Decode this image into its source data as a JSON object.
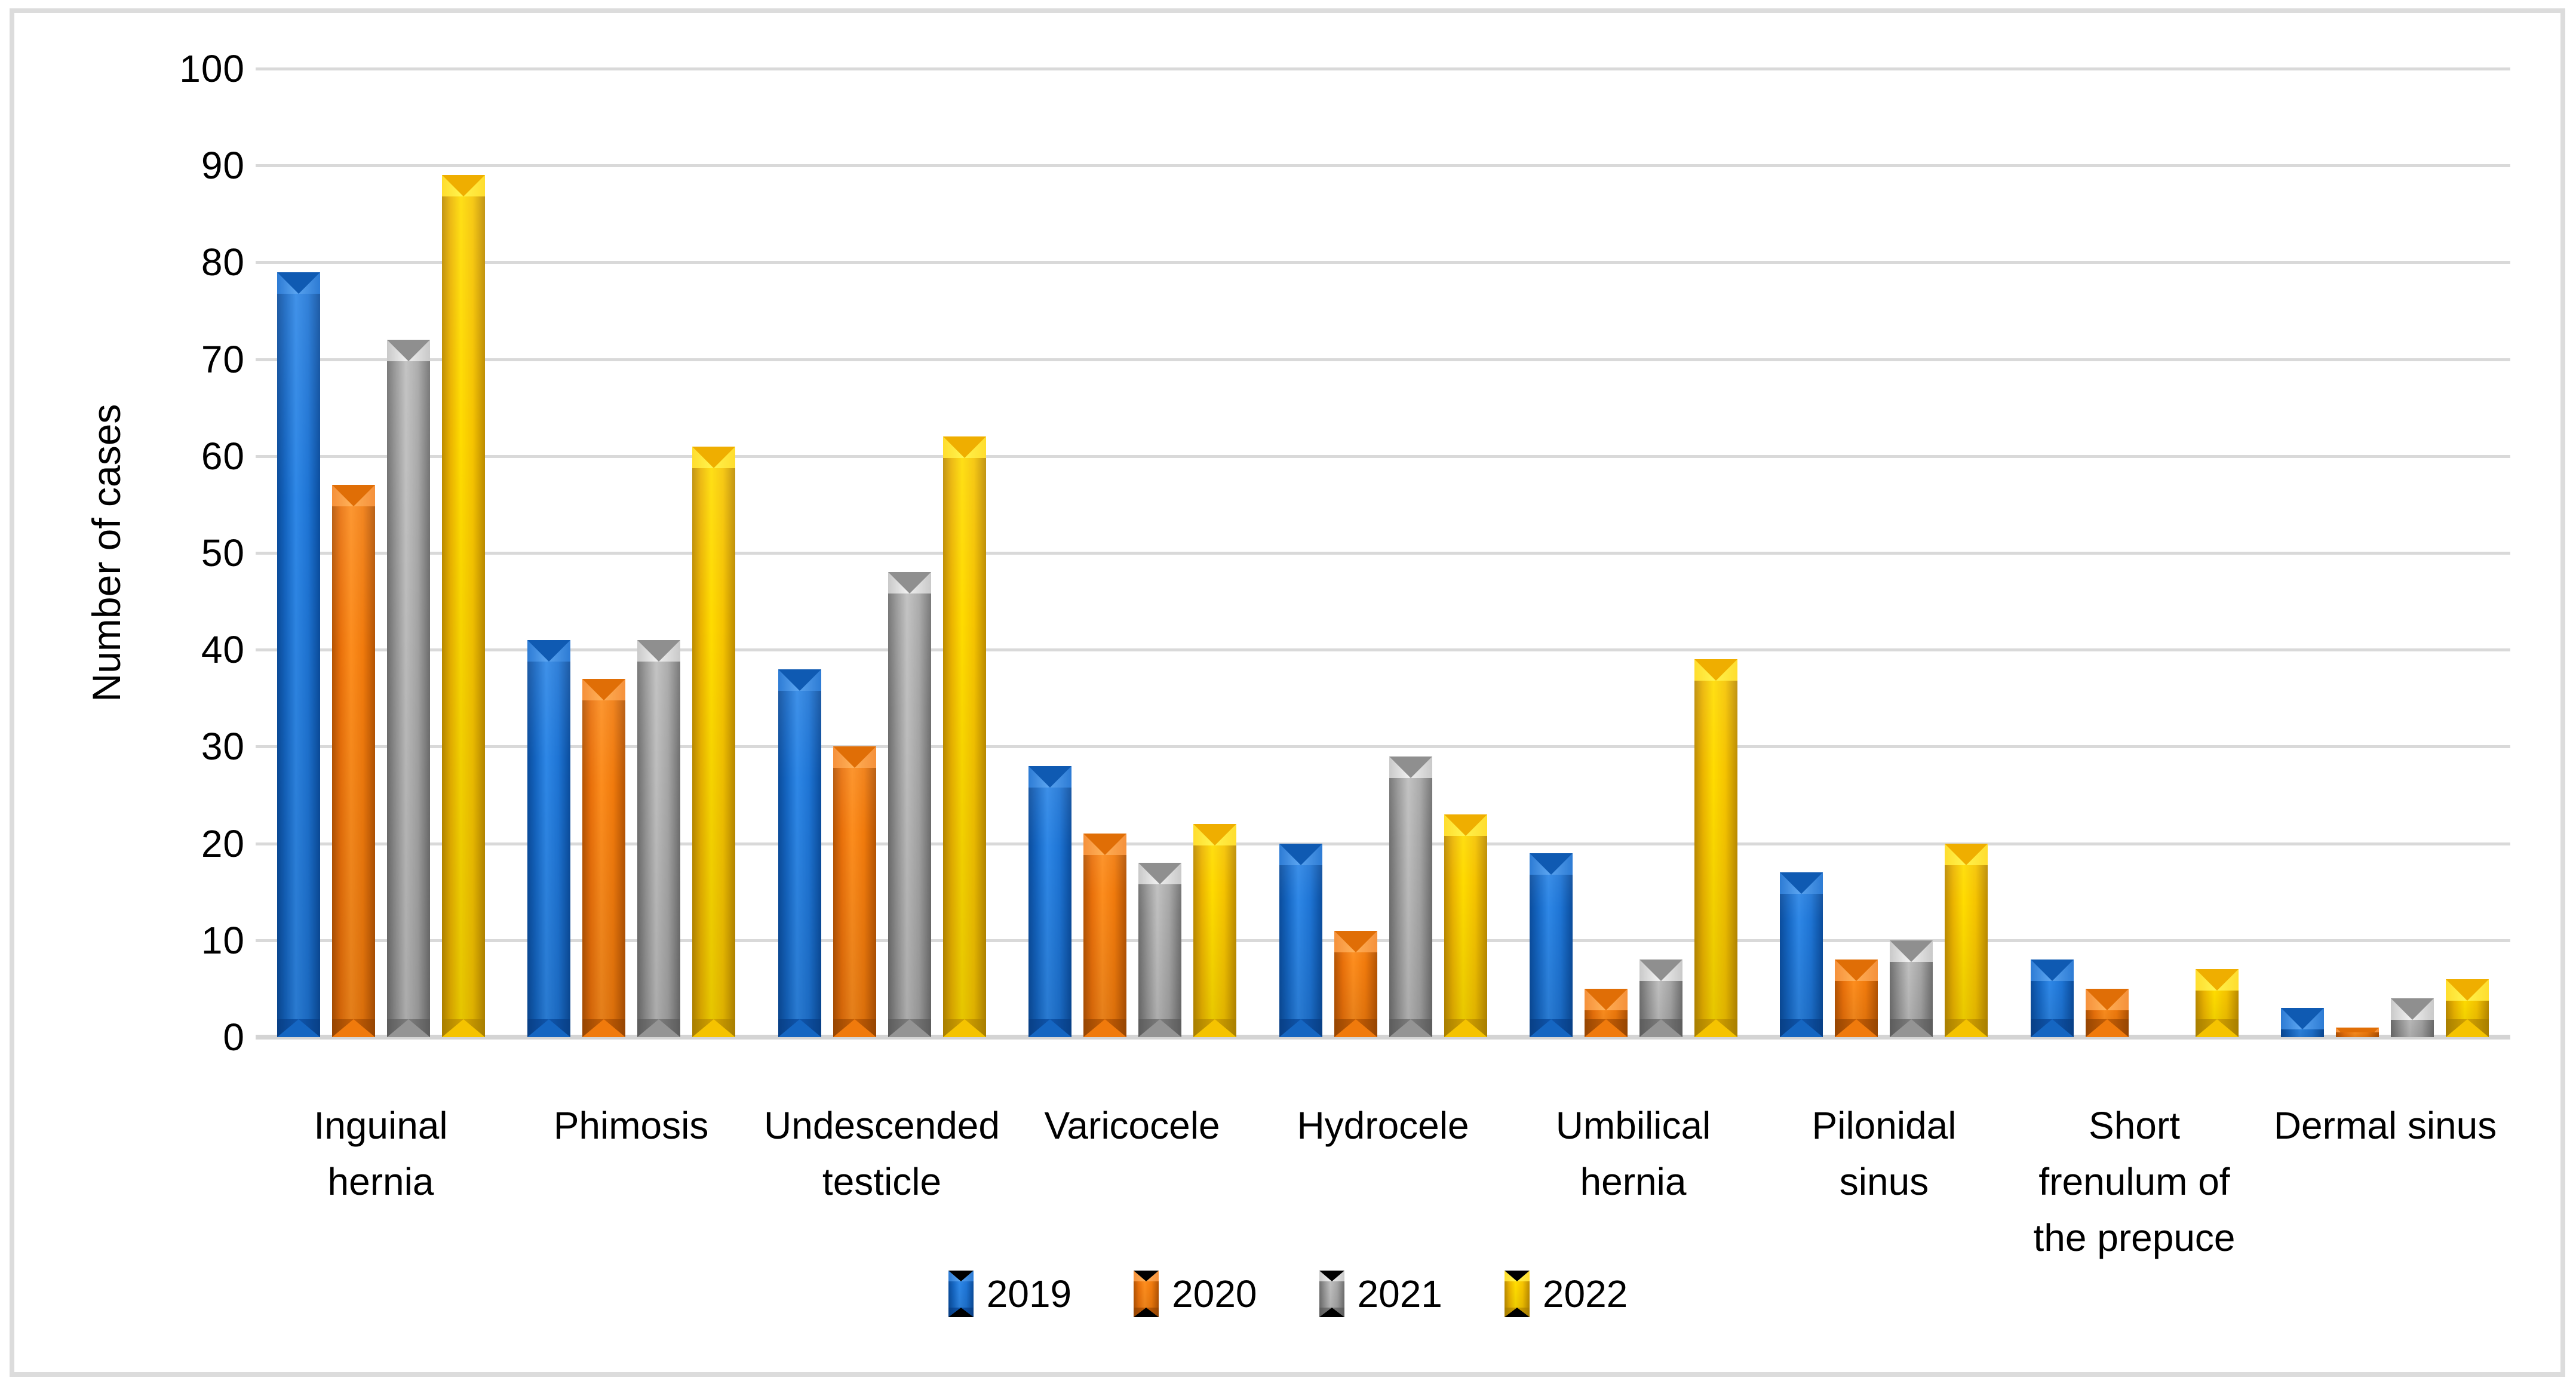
{
  "figure": {
    "y_axis_title": "Number of cases",
    "y_tick_labels": [
      "0",
      "10",
      "20",
      "30",
      "40",
      "50",
      "60",
      "70",
      "80",
      "90",
      "100"
    ],
    "border_color": "#DCDCDC",
    "gridline_color": "#D9D9D9"
  },
  "legend": {
    "items": [
      {
        "label": "2019",
        "color": "#1566C2"
      },
      {
        "label": "2020",
        "color": "#F07A0C"
      },
      {
        "label": "2021",
        "color": "#A6A6A6"
      },
      {
        "label": "2022",
        "color": "#FFD200"
      }
    ]
  },
  "chart_data": {
    "type": "bar",
    "title": "",
    "xlabel": "",
    "ylabel": "Number of cases",
    "ylim": [
      0,
      100
    ],
    "y_tick_step": 10,
    "grid": true,
    "legend_position": "bottom",
    "categories": [
      "Inguinal hernia",
      "Phimosis",
      "Undescended testicle",
      "Varicocele",
      "Hydrocele",
      "Umbilical hernia",
      "Pilonidal sinus",
      "Short frenulum of the prepuce",
      "Dermal sinus"
    ],
    "category_label_lines": [
      [
        "Inguinal",
        "hernia"
      ],
      [
        "Phimosis"
      ],
      [
        "Undescended",
        "testicle"
      ],
      [
        "Varicocele"
      ],
      [
        "Hydrocele"
      ],
      [
        "Umbilical",
        "hernia"
      ],
      [
        "Pilonidal",
        "sinus"
      ],
      [
        "Short",
        "frenulum of",
        "the prepuce"
      ],
      [
        "Dermal sinus"
      ]
    ],
    "series": [
      {
        "name": "2019",
        "color": "#1566C2",
        "values": [
          79,
          41,
          38,
          28,
          20,
          19,
          17,
          8,
          3
        ]
      },
      {
        "name": "2020",
        "color": "#F07A0C",
        "values": [
          57,
          37,
          30,
          21,
          11,
          5,
          8,
          5,
          1
        ]
      },
      {
        "name": "2021",
        "color": "#A6A6A6",
        "values": [
          72,
          41,
          48,
          18,
          29,
          8,
          10,
          0,
          4
        ]
      },
      {
        "name": "2022",
        "color": "#FFD200",
        "values": [
          89,
          61,
          62,
          22,
          23,
          39,
          20,
          7,
          6
        ]
      }
    ]
  }
}
